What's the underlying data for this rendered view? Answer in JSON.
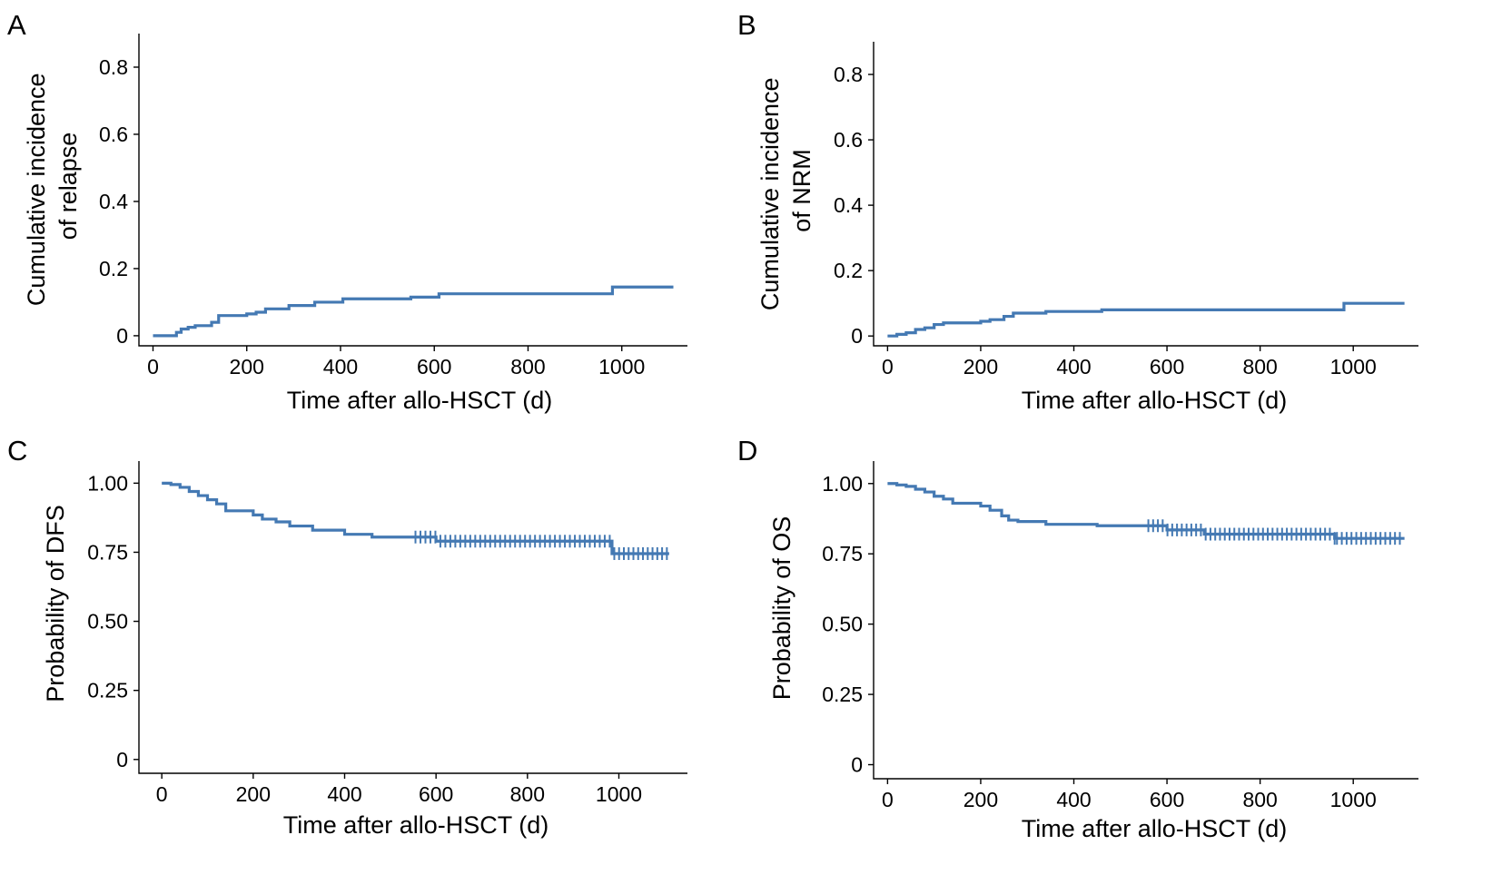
{
  "figure": {
    "curve_color": "#4479b3"
  },
  "chart_data": [
    {
      "panel": "A",
      "type": "line",
      "step": true,
      "xlabel": "Time after allo-HSCT (d)",
      "ylabel": [
        "Cumulative incidence",
        "of relapse"
      ],
      "xlim": [
        -30,
        1140
      ],
      "ylim": [
        -0.03,
        0.9
      ],
      "xticks": [
        0,
        200,
        400,
        600,
        800,
        1000
      ],
      "xtick_labels": [
        "0",
        "200",
        "400",
        "600",
        "800",
        "1000"
      ],
      "yticks": [
        0,
        0.2,
        0.4,
        0.6,
        0.8
      ],
      "ytick_labels": [
        "0",
        "0.2",
        "0.4",
        "0.6",
        "0.8"
      ],
      "grid": false,
      "legend": "none",
      "series": [
        {
          "x": [
            0,
            50,
            60,
            75,
            90,
            125,
            140,
            200,
            220,
            240,
            290,
            345,
            405,
            550,
            610,
            980,
            1110
          ],
          "y": [
            0,
            0.01,
            0.02,
            0.025,
            0.03,
            0.04,
            0.06,
            0.065,
            0.07,
            0.08,
            0.09,
            0.1,
            0.11,
            0.115,
            0.125,
            0.145,
            0.145
          ]
        }
      ],
      "censor_marks": []
    },
    {
      "panel": "B",
      "type": "line",
      "step": true,
      "xlabel": "Time after allo-HSCT (d)",
      "ylabel": [
        "Cumulative incidence",
        "of NRM"
      ],
      "xlim": [
        -30,
        1140
      ],
      "ylim": [
        -0.03,
        0.9
      ],
      "xticks": [
        0,
        200,
        400,
        600,
        800,
        1000
      ],
      "xtick_labels": [
        "0",
        "200",
        "400",
        "600",
        "800",
        "1000"
      ],
      "yticks": [
        0,
        0.2,
        0.4,
        0.6,
        0.8
      ],
      "ytick_labels": [
        "0",
        "0.2",
        "0.4",
        "0.6",
        "0.8"
      ],
      "grid": false,
      "legend": "none",
      "series": [
        {
          "x": [
            0,
            20,
            40,
            60,
            80,
            100,
            120,
            200,
            220,
            250,
            270,
            340,
            460,
            980,
            1110
          ],
          "y": [
            0,
            0.005,
            0.01,
            0.02,
            0.025,
            0.035,
            0.04,
            0.045,
            0.05,
            0.06,
            0.07,
            0.075,
            0.08,
            0.1,
            0.1
          ]
        }
      ],
      "censor_marks": []
    },
    {
      "panel": "C",
      "type": "line",
      "step": true,
      "xlabel": "Time after allo-HSCT (d)",
      "ylabel": [
        "Probability of DFS"
      ],
      "xlim": [
        -50,
        1150
      ],
      "ylim": [
        -0.05,
        1.08
      ],
      "xticks": [
        0,
        200,
        400,
        600,
        800,
        1000
      ],
      "xtick_labels": [
        "0",
        "200",
        "400",
        "600",
        "800",
        "1000"
      ],
      "yticks": [
        0,
        0.25,
        0.5,
        0.75,
        1.0
      ],
      "ytick_labels": [
        "0",
        "0.25",
        "0.50",
        "0.75",
        "1.00"
      ],
      "grid": false,
      "legend": "none",
      "series": [
        {
          "x": [
            0,
            20,
            40,
            60,
            80,
            100,
            120,
            140,
            200,
            220,
            250,
            280,
            330,
            400,
            460,
            600,
            985,
            1110
          ],
          "y": [
            1.0,
            0.995,
            0.985,
            0.97,
            0.955,
            0.94,
            0.925,
            0.9,
            0.885,
            0.87,
            0.86,
            0.845,
            0.83,
            0.815,
            0.805,
            0.79,
            0.745,
            0.745
          ]
        }
      ],
      "censor_marks": [
        {
          "x_from": 555,
          "x_to": 980,
          "count": 40
        },
        {
          "x_from": 990,
          "x_to": 1105,
          "count": 12
        }
      ]
    },
    {
      "panel": "D",
      "type": "line",
      "step": true,
      "xlabel": "Time after allo-HSCT (d)",
      "ylabel": [
        "Probability of OS"
      ],
      "xlim": [
        -30,
        1140
      ],
      "ylim": [
        -0.05,
        1.08
      ],
      "xticks": [
        0,
        200,
        400,
        600,
        800,
        1000
      ],
      "xtick_labels": [
        "0",
        "200",
        "400",
        "600",
        "800",
        "1000"
      ],
      "yticks": [
        0,
        0.25,
        0.5,
        0.75,
        1.0
      ],
      "ytick_labels": [
        "0",
        "0.25",
        "0.50",
        "0.75",
        "1.00"
      ],
      "grid": false,
      "legend": "none",
      "series": [
        {
          "x": [
            0,
            20,
            40,
            60,
            80,
            100,
            120,
            140,
            200,
            220,
            245,
            260,
            280,
            340,
            450,
            600,
            680,
            960,
            1110
          ],
          "y": [
            1.0,
            0.995,
            0.99,
            0.98,
            0.97,
            0.955,
            0.945,
            0.93,
            0.92,
            0.905,
            0.885,
            0.87,
            0.865,
            0.855,
            0.85,
            0.835,
            0.82,
            0.805,
            0.805
          ]
        }
      ],
      "censor_marks": [
        {
          "x_from": 560,
          "x_to": 960,
          "count": 40
        },
        {
          "x_from": 965,
          "x_to": 1100,
          "count": 14
        }
      ]
    }
  ]
}
